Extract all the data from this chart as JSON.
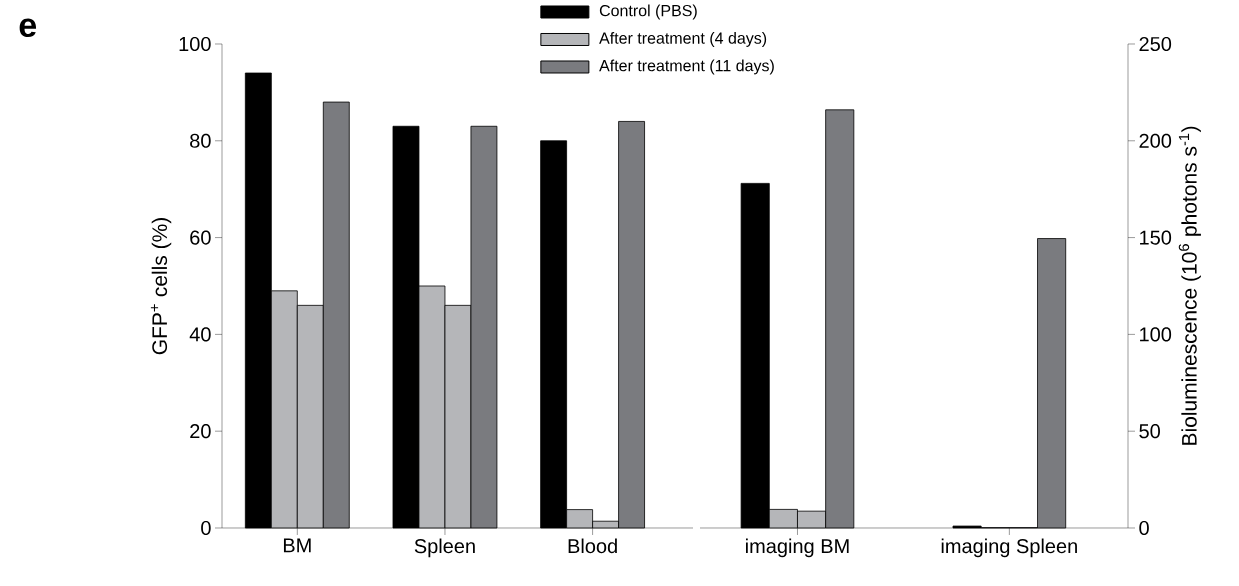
{
  "chart_data": [
    {
      "type": "bar",
      "categories": [
        "BM",
        "Spleen",
        "Blood"
      ],
      "ylabel": "GFP$^{+}$ cells (%)",
      "ylim": [
        0,
        100
      ],
      "yticks": [
        0,
        20,
        40,
        60,
        80,
        100
      ],
      "legend": "top right",
      "annotations": [
        "e"
      ],
      "series": [
        {
          "name": "Control (PBS)",
          "color": "#000000",
          "values": [
            94,
            83,
            80
          ]
        },
        {
          "name": "After treatment (4 days)",
          "color": "#b5b6b9",
          "values": [
            49,
            50,
            3.8
          ]
        },
        {
          "color": "#b5b6b9",
          "values": [
            46,
            46,
            1.4
          ]
        },
        {
          "name": "After treatment (11 days)",
          "color": "#7a7b7f",
          "values": [
            88,
            83,
            84
          ]
        }
      ]
    },
    {
      "type": "bar",
      "categories": [
        "imaging BM",
        "imaging Spleen"
      ],
      "y2label": "Bioluminescence (10$^{6}$ photons s$^{-1}$)",
      "y2lim": [
        0,
        250
      ],
      "y2ticks": [
        0,
        50,
        100,
        150,
        200,
        250
      ],
      "series": [
        {
          "color": "#000000",
          "axis": "y2",
          "values": [
            178,
            1
          ]
        },
        {
          "color": "#b5b6b9",
          "axis": "y2",
          "values": [
            9.6,
            0.2
          ]
        },
        {
          "color": "#b5b6b9",
          "axis": "y2",
          "values": [
            8.7,
            0.2
          ]
        },
        {
          "color": "#7a7b7f",
          "axis": "y2",
          "values": [
            216,
            149.5
          ]
        }
      ]
    }
  ]
}
